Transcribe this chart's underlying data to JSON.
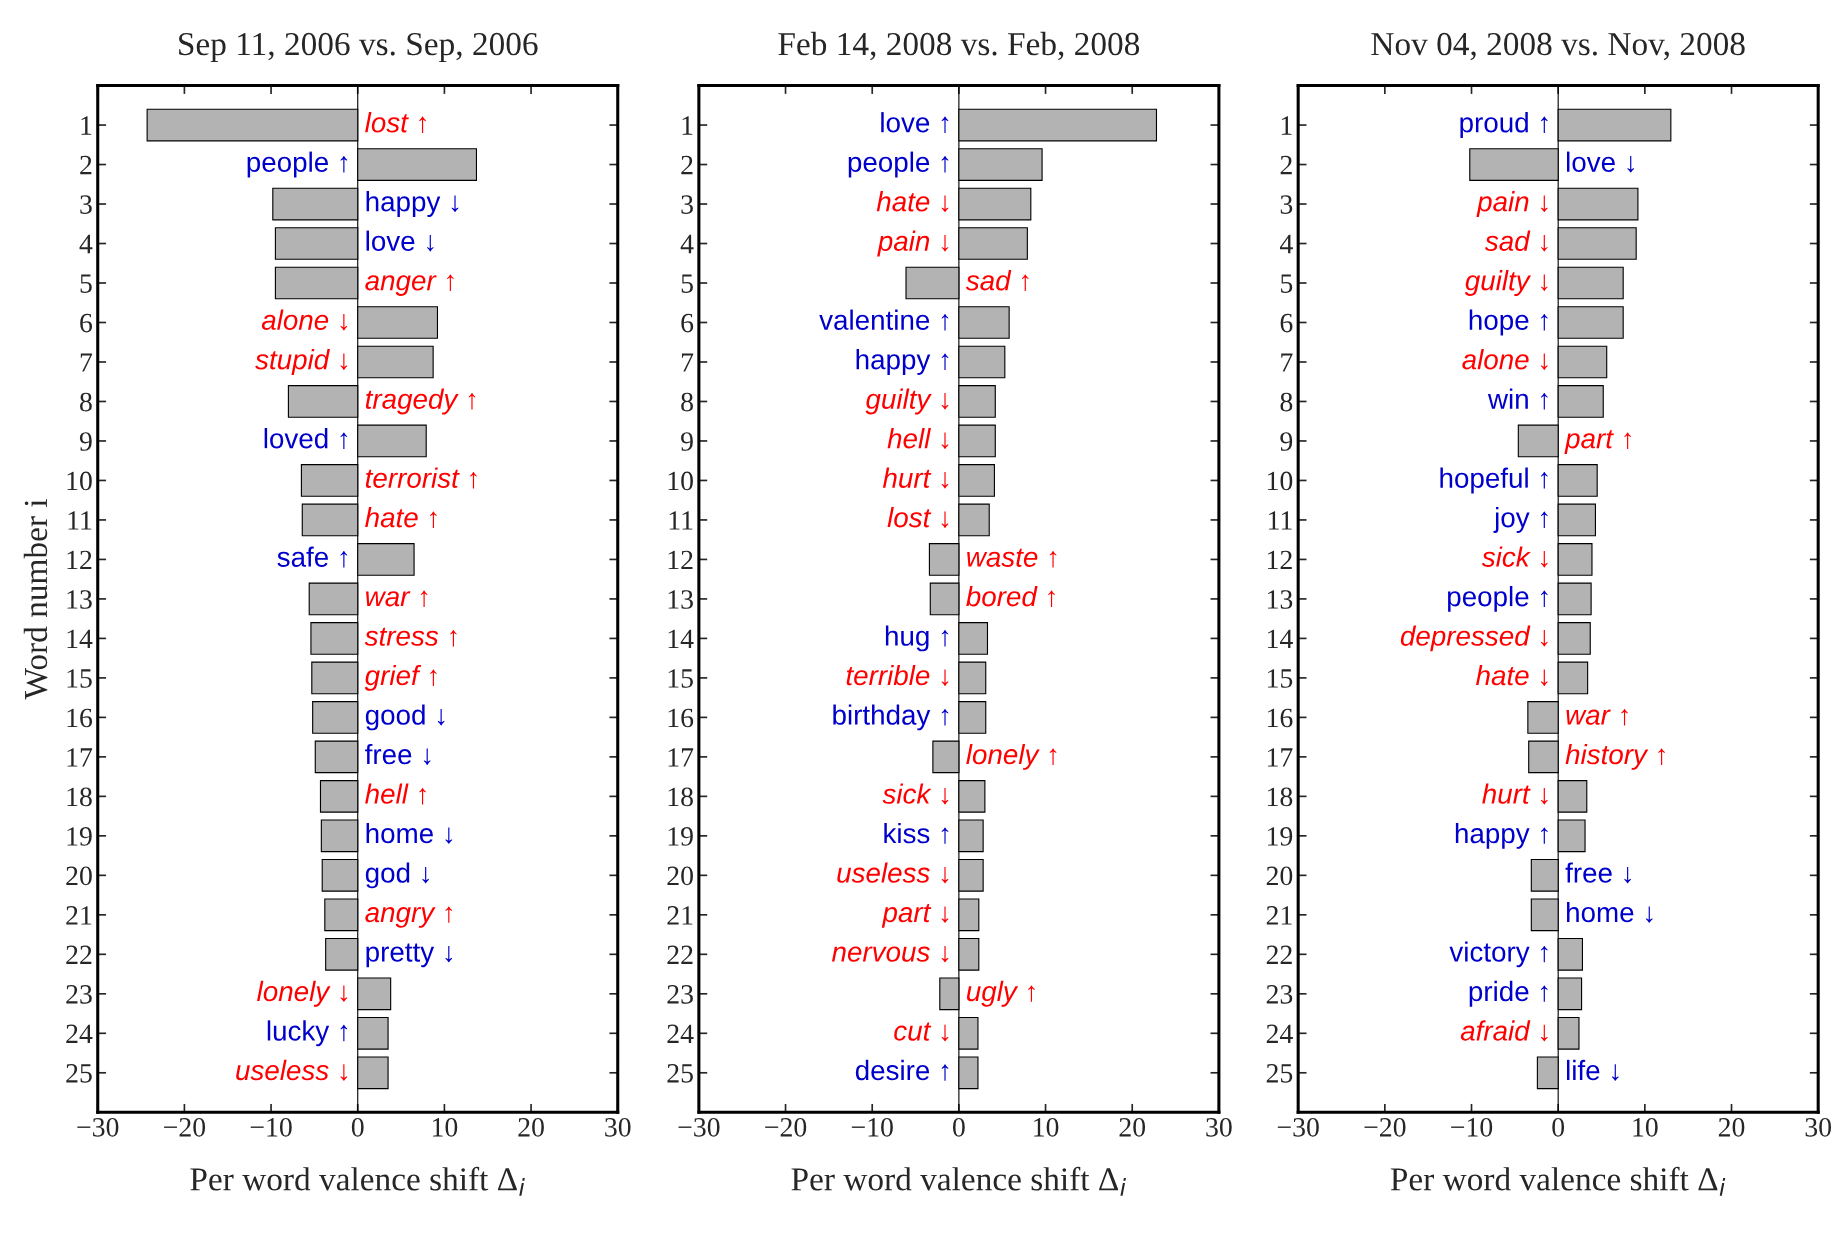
{
  "chart_data": [
    {
      "type": "bar",
      "orientation": "horizontal",
      "title": "Sep 11, 2006 vs. Sep, 2006",
      "xlabel": "Per word valence shift Δ$_{i}$",
      "ylabel": "Word number i",
      "categories": [
        "1",
        "2",
        "3",
        "4",
        "5",
        "6",
        "7",
        "8",
        "9",
        "10",
        "11",
        "12",
        "13",
        "14",
        "15",
        "16",
        "17",
        "18",
        "19",
        "20",
        "21",
        "22",
        "23",
        "24",
        "25"
      ],
      "xlim": [
        -30,
        30
      ],
      "xticks": [
        {
          "value": -30,
          "label": "−30"
        },
        {
          "value": -20,
          "label": "−20"
        },
        {
          "value": -10,
          "label": "−10"
        },
        0,
        10,
        20,
        30
      ],
      "ref_lines": [
        {
          "axis": "x",
          "value": 0,
          "color": "#000000"
        }
      ],
      "series": [
        {
          "color": "#b3b3b3",
          "values": [
            -24.3,
            null,
            null,
            null,
            -9.5,
            9.2,
            8.7,
            -8.0,
            null,
            -6.5,
            -6.4,
            null,
            -5.6,
            -5.4,
            -5.3,
            null,
            null,
            -4.3,
            null,
            null,
            -3.8,
            null,
            3.8,
            null,
            3.5
          ],
          "value_labels": [
            "lost ↑",
            null,
            null,
            null,
            "anger ↑",
            "alone ↓",
            "stupid ↓",
            "tragedy ↑",
            null,
            "terrorist ↑",
            "hate ↑",
            null,
            "war ↑",
            "stress ↑",
            "grief ↑",
            null,
            null,
            "hell ↑",
            null,
            null,
            "angry ↑",
            null,
            "lonely ↓",
            null,
            "useless ↓"
          ]
        },
        {
          "color": "#b3b3b3",
          "values": [
            null,
            13.7,
            -9.8,
            -9.5,
            null,
            null,
            null,
            null,
            7.9,
            null,
            null,
            6.5,
            null,
            null,
            null,
            -5.2,
            -4.9,
            null,
            -4.2,
            -4.1,
            null,
            -3.7,
            null,
            3.5,
            null
          ],
          "value_labels": [
            null,
            "people ↑",
            "happy ↓",
            "love ↓",
            null,
            null,
            null,
            null,
            "loved ↑",
            null,
            null,
            "safe ↑",
            null,
            null,
            null,
            "good ↓",
            "free ↓",
            null,
            "home ↓",
            "god ↓",
            null,
            "pretty ↓",
            null,
            "lucky ↑",
            null
          ]
        }
      ]
    },
    {
      "type": "bar",
      "orientation": "horizontal",
      "title": "Feb 14, 2008 vs. Feb, 2008",
      "xlabel": "Per word valence shift Δ$_{i}$",
      "categories": [
        "1",
        "2",
        "3",
        "4",
        "5",
        "6",
        "7",
        "8",
        "9",
        "10",
        "11",
        "12",
        "13",
        "14",
        "15",
        "16",
        "17",
        "18",
        "19",
        "20",
        "21",
        "22",
        "23",
        "24",
        "25"
      ],
      "xlim": [
        -30,
        30
      ],
      "xticks": [
        {
          "value": -30,
          "label": "−30"
        },
        {
          "value": -20,
          "label": "−20"
        },
        {
          "value": -10,
          "label": "−10"
        },
        0,
        10,
        20,
        30
      ],
      "ref_lines": [
        {
          "axis": "x",
          "value": 0,
          "color": "#000000"
        }
      ],
      "series": [
        {
          "color": "#b3b3b3",
          "values": [
            null,
            null,
            8.3,
            7.9,
            -6.1,
            null,
            null,
            4.2,
            4.2,
            4.1,
            3.5,
            -3.4,
            -3.3,
            null,
            3.1,
            null,
            -3.0,
            3.0,
            null,
            2.8,
            2.3,
            2.3,
            -2.2,
            2.2,
            null
          ],
          "value_labels": [
            null,
            null,
            "hate ↓",
            "pain ↓",
            "sad ↑",
            null,
            null,
            "guilty ↓",
            "hell ↓",
            "hurt ↓",
            "lost ↓",
            "waste ↑",
            "bored ↑",
            null,
            "terrible ↓",
            null,
            "lonely ↑",
            "sick ↓",
            null,
            "useless ↓",
            "part ↓",
            "nervous ↓",
            "ugly ↑",
            "cut ↓",
            null
          ]
        },
        {
          "color": "#b3b3b3",
          "values": [
            22.8,
            9.6,
            null,
            null,
            null,
            5.8,
            5.3,
            null,
            null,
            null,
            null,
            null,
            null,
            3.3,
            null,
            3.1,
            null,
            null,
            2.8,
            null,
            null,
            null,
            null,
            null,
            2.2
          ],
          "value_labels": [
            "love ↑",
            "people ↑",
            null,
            null,
            null,
            "valentine ↑",
            "happy ↑",
            null,
            null,
            null,
            null,
            null,
            null,
            "hug ↑",
            null,
            "birthday ↑",
            null,
            null,
            "kiss ↑",
            null,
            null,
            null,
            null,
            null,
            "desire ↑"
          ]
        }
      ]
    },
    {
      "type": "bar",
      "orientation": "horizontal",
      "title": "Nov 04, 2008 vs. Nov, 2008",
      "xlabel": "Per word valence shift Δ$_{i}$",
      "categories": [
        "1",
        "2",
        "3",
        "4",
        "5",
        "6",
        "7",
        "8",
        "9",
        "10",
        "11",
        "12",
        "13",
        "14",
        "15",
        "16",
        "17",
        "18",
        "19",
        "20",
        "21",
        "22",
        "23",
        "24",
        "25"
      ],
      "xlim": [
        -30,
        30
      ],
      "xticks": [
        {
          "value": -30,
          "label": "−30"
        },
        {
          "value": -20,
          "label": "−20"
        },
        {
          "value": -10,
          "label": "−10"
        },
        0,
        10,
        20,
        30
      ],
      "ref_lines": [
        {
          "axis": "x",
          "value": 0,
          "color": "#000000"
        }
      ],
      "series": [
        {
          "color": "#b3b3b3",
          "values": [
            null,
            null,
            9.2,
            9.0,
            7.5,
            null,
            5.6,
            null,
            -4.6,
            null,
            null,
            3.9,
            null,
            3.7,
            3.4,
            -3.5,
            -3.4,
            3.3,
            null,
            null,
            null,
            null,
            null,
            2.4,
            null
          ],
          "value_labels": [
            null,
            null,
            "pain ↓",
            "sad ↓",
            "guilty ↓",
            null,
            "alone ↓",
            null,
            "part ↑",
            null,
            null,
            "sick ↓",
            null,
            "depressed ↓",
            "hate ↓",
            "war ↑",
            "history ↑",
            "hurt ↓",
            null,
            null,
            null,
            null,
            null,
            "afraid ↓",
            null
          ]
        },
        {
          "color": "#b3b3b3",
          "values": [
            13.0,
            -10.2,
            null,
            null,
            null,
            7.5,
            null,
            5.2,
            null,
            4.5,
            4.3,
            null,
            3.8,
            null,
            null,
            null,
            null,
            null,
            3.1,
            -3.1,
            -3.1,
            2.8,
            2.7,
            null,
            -2.4
          ],
          "value_labels": [
            "proud ↑",
            "love ↓",
            null,
            null,
            null,
            "hope ↑",
            null,
            "win ↑",
            null,
            "hopeful ↑",
            "joy ↑",
            null,
            "people ↑",
            null,
            null,
            null,
            null,
            null,
            "happy ↑",
            "free ↓",
            "home ↓",
            "victory ↑",
            "pride ↑",
            null,
            "life ↓"
          ]
        }
      ]
    }
  ]
}
